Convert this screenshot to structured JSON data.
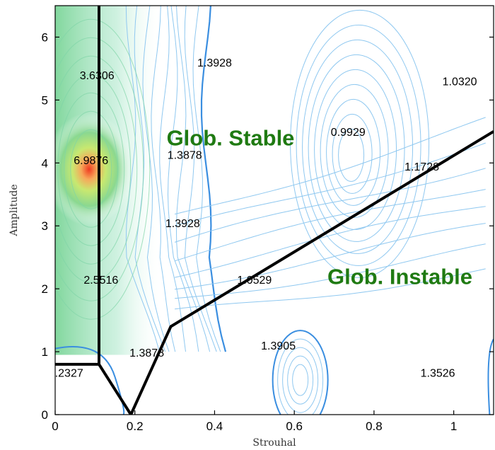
{
  "chart_data": {
    "type": "contour",
    "xlabel": "Strouhal",
    "ylabel": "Amplitude",
    "xlim": [
      0,
      1.1
    ],
    "ylim": [
      0,
      6.5
    ],
    "xticks": [
      0,
      0.2,
      0.4,
      0.6,
      0.8,
      1
    ],
    "xtick_labels": [
      "0",
      "0.2",
      "0.4",
      "0.6",
      "0.8",
      "1"
    ],
    "yticks": [
      0,
      1,
      2,
      3,
      4,
      5,
      6
    ],
    "ytick_labels": [
      "0",
      "1",
      "2",
      "3",
      "4",
      "5",
      "6"
    ],
    "contour_labels": [
      {
        "text": "1.3928",
        "x": 0.4,
        "y": 5.6
      },
      {
        "text": "3.6306",
        "x": 0.105,
        "y": 5.4
      },
      {
        "text": "1.0320",
        "x": 1.015,
        "y": 5.3
      },
      {
        "text": "1.3878",
        "x": 0.325,
        "y": 4.13
      },
      {
        "text": "0.9929",
        "x": 0.735,
        "y": 4.5
      },
      {
        "text": "6.9876",
        "x": 0.09,
        "y": 4.05
      },
      {
        "text": "1.3928",
        "x": 0.32,
        "y": 3.05
      },
      {
        "text": "1.1728",
        "x": 0.92,
        "y": 3.95
      },
      {
        "text": "1.0529",
        "x": 0.5,
        "y": 2.15
      },
      {
        "text": "2.5516",
        "x": 0.115,
        "y": 2.15
      },
      {
        "text": "1.3905",
        "x": 0.56,
        "y": 1.1
      },
      {
        "text": "1.3878",
        "x": 0.23,
        "y": 0.99
      },
      {
        "text": "1.3526",
        "x": 0.96,
        "y": 0.67
      },
      {
        "text": ".2327",
        "x": 0.035,
        "y": 0.67
      }
    ],
    "region_labels": [
      {
        "text": "Glob. Stable",
        "x": 0.44,
        "y": 4.4
      },
      {
        "text": "Glob. Instable",
        "x": 0.865,
        "y": 2.2
      }
    ],
    "boundary_lines": [
      {
        "x": [
          0.11,
          0.11,
          0.19,
          0.29,
          1.1
        ],
        "y": [
          6.5,
          0.8,
          0.0,
          1.4,
          4.5
        ]
      },
      {
        "x": [
          0.11,
          0.0
        ],
        "y": [
          0.8,
          0.8
        ]
      }
    ],
    "peak": {
      "x": 0.085,
      "y": 3.9,
      "value": 6.9876
    },
    "colors": {
      "contour_line": "#8fc8f0",
      "contour_thick": "#3a8ee0",
      "boundary": "#000000",
      "region_text": "#1f7a12",
      "peak_hot": "#f04020",
      "mid": "#7ad07a"
    }
  }
}
